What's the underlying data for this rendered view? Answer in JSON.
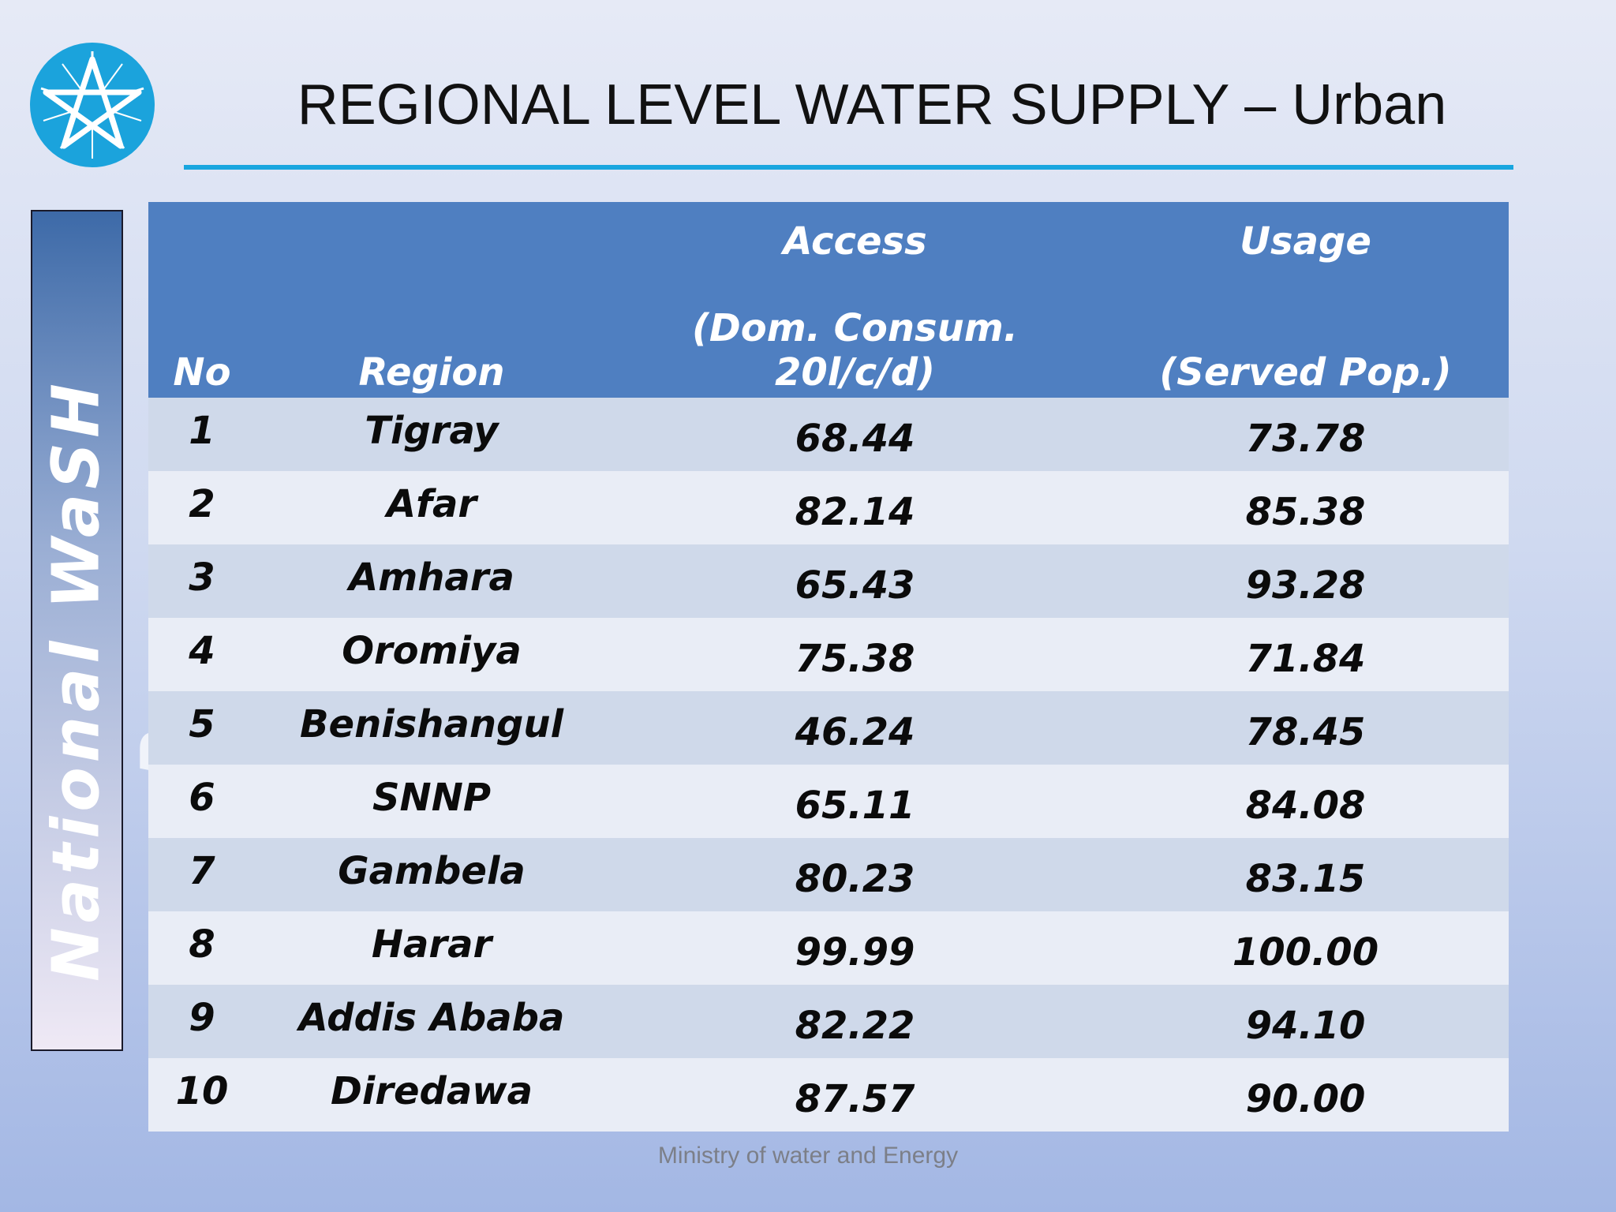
{
  "slide": {
    "title": "REGIONAL LEVEL WATER SUPPLY  – Urban",
    "side_label": "National WaSH",
    "side_label_partial": "Program",
    "footer": "Ministry of water and Energy"
  },
  "colors": {
    "accent_line": "#19a6df",
    "logo_blue": "#1ba3dc",
    "table_header": "#4f7fc1",
    "row_odd": "#cfd9ea",
    "row_even": "#e9edf6"
  },
  "icons": {
    "logo": "star-emblem-icon"
  },
  "table": {
    "header_top": {
      "no": "",
      "region": "",
      "access": "Access",
      "usage": "Usage"
    },
    "header_bottom": {
      "no": "No",
      "region": "Region",
      "access": "(Dom. Consum. 20l/c/d)",
      "usage": "(Served Pop.)"
    },
    "rows": [
      {
        "no": "1",
        "region": "Tigray",
        "access": "68.44",
        "usage": "73.78"
      },
      {
        "no": "2",
        "region": "Afar",
        "access": "82.14",
        "usage": "85.38"
      },
      {
        "no": "3",
        "region": "Amhara",
        "access": "65.43",
        "usage": "93.28"
      },
      {
        "no": "4",
        "region": "Oromiya",
        "access": "75.38",
        "usage": "71.84"
      },
      {
        "no": "5",
        "region": "Benishangul",
        "access": "46.24",
        "usage": "78.45"
      },
      {
        "no": "6",
        "region": "SNNP",
        "access": "65.11",
        "usage": "84.08"
      },
      {
        "no": "7",
        "region": "Gambela",
        "access": "80.23",
        "usage": "83.15"
      },
      {
        "no": "8",
        "region": "Harar",
        "access": "99.99",
        "usage": "100.00"
      },
      {
        "no": "9",
        "region": "Addis Ababa",
        "access": "82.22",
        "usage": "94.10"
      },
      {
        "no": "10",
        "region": "Diredawa",
        "access": "87.57",
        "usage": "90.00"
      }
    ]
  }
}
